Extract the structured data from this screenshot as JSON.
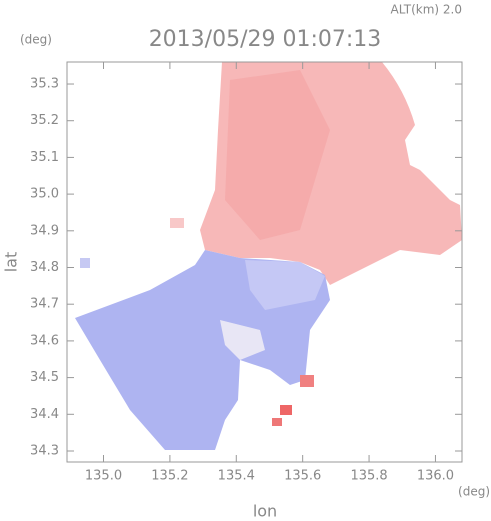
{
  "chart_data": {
    "type": "radar-field",
    "title": "2013/05/29 01:07:13",
    "subtitle": "ALT(km) 2.0",
    "x_label": "lon",
    "y_label": "lat",
    "x_unit": "(deg)",
    "y_unit": "(deg)",
    "xlim": [
      134.89,
      136.08
    ],
    "ylim": [
      34.27,
      35.36
    ],
    "xticks": [
      {
        "value": 135.0,
        "label": "135.0"
      },
      135.2,
      135.4,
      135.6,
      135.8,
      {
        "value": 136.0,
        "label": "136.0"
      }
    ],
    "yticks": [
      34.3,
      34.4,
      34.5,
      34.6,
      34.7,
      34.8,
      34.9,
      {
        "value": 35.0,
        "label": "35.0"
      },
      35.1,
      35.2,
      35.3
    ],
    "frame_color": "#999999"
  }
}
